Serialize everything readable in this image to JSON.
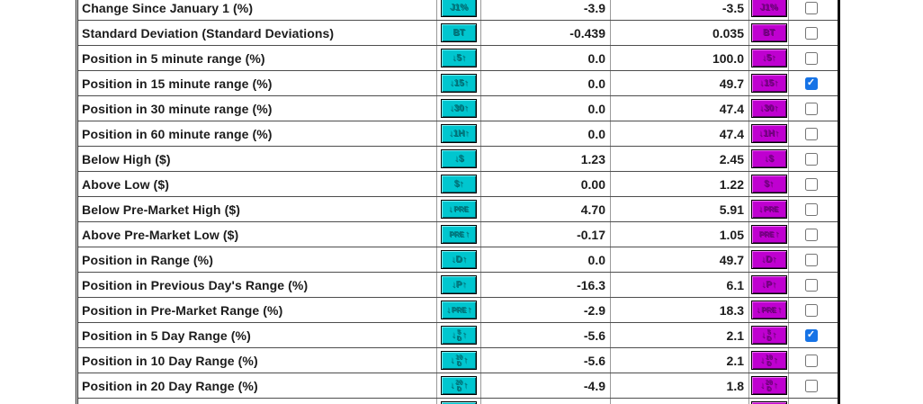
{
  "table": {
    "rows": [
      {
        "label": "Change Since January 1 (%)",
        "icon": {
          "name": "change-since-jan1-icon",
          "pre": "J1%",
          "top": "",
          "bottom": "",
          "post": ""
        },
        "min": "-3.9",
        "max": "-3.5",
        "checked": false
      },
      {
        "label": "Standard Deviation (Standard Deviations)",
        "icon": {
          "name": "standard-deviation-icon",
          "pre": "BT",
          "top": "",
          "bottom": "",
          "post": ""
        },
        "min": "-0.439",
        "max": "0.035",
        "checked": false
      },
      {
        "label": "Position in 5 minute range (%)",
        "icon": {
          "name": "position-5min-range-icon",
          "pre": "↓5↑",
          "top": "",
          "bottom": "",
          "post": ""
        },
        "min": "0.0",
        "max": "100.0",
        "checked": false
      },
      {
        "label": "Position in 15 minute range (%)",
        "icon": {
          "name": "position-15min-range-icon",
          "pre": "↓15↑",
          "top": "",
          "bottom": "",
          "post": ""
        },
        "min": "0.0",
        "max": "49.7",
        "checked": true
      },
      {
        "label": "Position in 30 minute range (%)",
        "icon": {
          "name": "position-30min-range-icon",
          "pre": "↓30↑",
          "top": "",
          "bottom": "",
          "post": ""
        },
        "min": "0.0",
        "max": "47.4",
        "checked": false
      },
      {
        "label": "Position in 60 minute range (%)",
        "icon": {
          "name": "position-60min-range-icon",
          "pre": "↓1H↑",
          "top": "",
          "bottom": "",
          "post": ""
        },
        "min": "0.0",
        "max": "47.4",
        "checked": false
      },
      {
        "label": "Below High ($)",
        "icon": {
          "name": "below-high-icon",
          "pre": "↓$",
          "top": "",
          "bottom": "",
          "post": ""
        },
        "min": "1.23",
        "max": "2.45",
        "checked": false
      },
      {
        "label": "Above Low ($)",
        "icon": {
          "name": "above-low-icon",
          "pre": "$↑",
          "top": "",
          "bottom": "",
          "post": ""
        },
        "min": "0.00",
        "max": "1.22",
        "checked": false
      },
      {
        "label": "Below Pre-Market High ($)",
        "icon": {
          "name": "below-premarket-high-icon",
          "pre": "↓",
          "top": "PRE",
          "bottom": "",
          "post": ""
        },
        "min": "4.70",
        "max": "5.91",
        "checked": false
      },
      {
        "label": "Above Pre-Market Low ($)",
        "icon": {
          "name": "above-premarket-low-icon",
          "pre": "",
          "top": "PRE",
          "bottom": "",
          "post": "↑"
        },
        "min": "-0.17",
        "max": "1.05",
        "checked": false
      },
      {
        "label": "Position in Range (%)",
        "icon": {
          "name": "position-in-range-icon",
          "pre": "↓D↑",
          "top": "",
          "bottom": "",
          "post": ""
        },
        "min": "0.0",
        "max": "49.7",
        "checked": false
      },
      {
        "label": "Position in Previous Day's Range (%)",
        "icon": {
          "name": "position-prev-day-range-icon",
          "pre": "↓P↑",
          "top": "",
          "bottom": "",
          "post": ""
        },
        "min": "-16.3",
        "max": "6.1",
        "checked": false
      },
      {
        "label": "Position in Pre-Market Range (%)",
        "icon": {
          "name": "position-premarket-range-icon",
          "pre": "↓",
          "top": "PRE",
          "bottom": "",
          "post": "↑"
        },
        "min": "-2.9",
        "max": "18.3",
        "checked": false
      },
      {
        "label": "Position in 5 Day Range (%)",
        "icon": {
          "name": "position-5day-range-icon",
          "pre": "↓",
          "top": "5",
          "bottom": "D",
          "post": "↑"
        },
        "min": "-5.6",
        "max": "2.1",
        "checked": true
      },
      {
        "label": "Position in 10 Day Range (%)",
        "icon": {
          "name": "position-10day-range-icon",
          "pre": "↓",
          "top": "10",
          "bottom": "D",
          "post": "↑"
        },
        "min": "-5.6",
        "max": "2.1",
        "checked": false
      },
      {
        "label": "Position in 20 Day Range (%)",
        "icon": {
          "name": "position-20day-range-icon",
          "pre": "↓",
          "top": "20",
          "bottom": "D",
          "post": "↑"
        },
        "min": "-4.9",
        "max": "1.8",
        "checked": false
      },
      {
        "label": "",
        "icon": {
          "name": "next-range-icon",
          "pre": "↓",
          "top": "",
          "bottom": "",
          "post": "↑"
        },
        "min": "",
        "max": "",
        "checked": false
      }
    ]
  },
  "checkmark": "✓",
  "colors": {
    "cyan_badge": "#00c6cf",
    "magenta_badge": "#bf00d0",
    "checkbox_checked": "#1673e6",
    "row_border": "#4d4d4d",
    "text": "#1c1c1c"
  }
}
